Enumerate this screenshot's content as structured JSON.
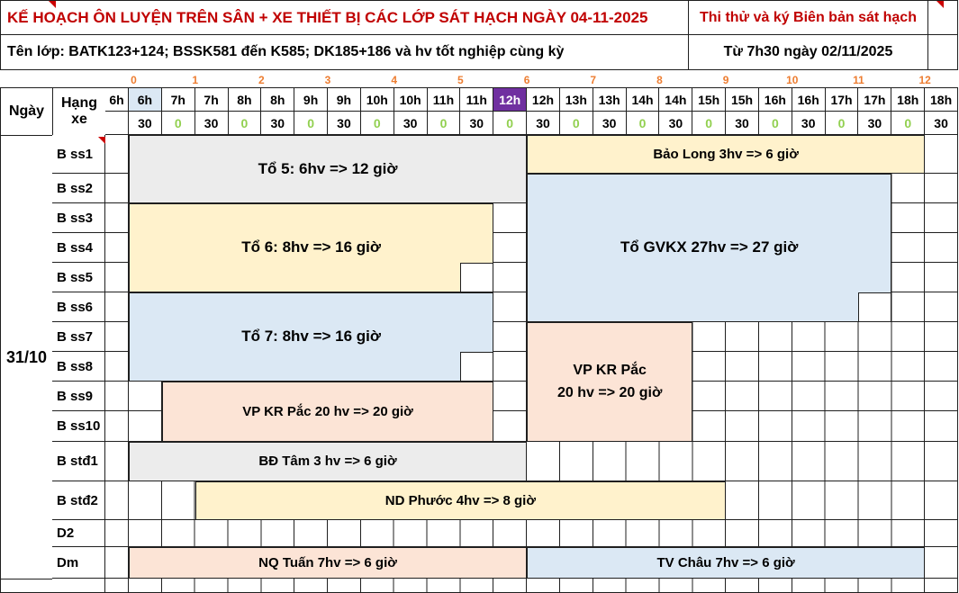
{
  "header": {
    "title": "KẾ HOẠCH ÔN LUYỆN TRÊN SÂN + XE THIẾT BỊ CÁC LỚP SÁT HẠCH NGÀY 04-11-2025",
    "class_list": "Tên lớp: BATK123+124; BSSK581 đến K585; DK185+186 và hv tốt nghiệp cùng kỳ",
    "exam_note": "Thi thử và ký Biên bản sát hạch",
    "exam_start": "Từ 7h30 ngày 02/11/2025"
  },
  "colors": {
    "title_red": "#c00000",
    "counter_orange": "#ed7d31",
    "minute_green": "#92d050",
    "purple_cell": "#7030a0",
    "header_highlight_blue": "#dbe8f4",
    "block_gray": "#ececec",
    "block_yellow": "#fff2cc",
    "block_blue": "#dbe8f4",
    "block_pink": "#fce4d6",
    "gridline": "#1f1f1f"
  },
  "table": {
    "date_col_header": "Ngày",
    "class_col_header": "Hạng\nxe",
    "date": "31/10",
    "hour_counters": [
      "0",
      "1",
      "2",
      "3",
      "4",
      "5",
      "6",
      "7",
      "8",
      "9",
      "10",
      "11",
      "12"
    ],
    "time_columns": [
      {
        "hour": "6h",
        "min": ""
      },
      {
        "hour": "6h",
        "min": "30",
        "hl": "blue"
      },
      {
        "hour": "7h",
        "min": "0"
      },
      {
        "hour": "7h",
        "min": "30"
      },
      {
        "hour": "8h",
        "min": "0"
      },
      {
        "hour": "8h",
        "min": "30"
      },
      {
        "hour": "9h",
        "min": "0"
      },
      {
        "hour": "9h",
        "min": "30"
      },
      {
        "hour": "10h",
        "min": "0"
      },
      {
        "hour": "10h",
        "min": "30"
      },
      {
        "hour": "11h",
        "min": "0"
      },
      {
        "hour": "11h",
        "min": "30"
      },
      {
        "hour": "12h",
        "min": "0",
        "hl": "purple"
      },
      {
        "hour": "12h",
        "min": "30"
      },
      {
        "hour": "13h",
        "min": "0"
      },
      {
        "hour": "13h",
        "min": "30"
      },
      {
        "hour": "14h",
        "min": "0"
      },
      {
        "hour": "14h",
        "min": "30"
      },
      {
        "hour": "15h",
        "min": "0"
      },
      {
        "hour": "15h",
        "min": "30"
      },
      {
        "hour": "16h",
        "min": "0"
      },
      {
        "hour": "16h",
        "min": "30"
      },
      {
        "hour": "17h",
        "min": "0"
      },
      {
        "hour": "17h",
        "min": "30"
      },
      {
        "hour": "18h",
        "min": "0"
      },
      {
        "hour": "18h",
        "min": "30"
      }
    ],
    "row_labels": [
      "B ss1",
      "B ss2",
      "B ss3",
      "B ss4",
      "B ss5",
      "B ss6",
      "B ss7",
      "B ss8",
      "B ss9",
      "B ss10",
      "B stđ1",
      "B stđ2",
      "D2",
      "Dm"
    ]
  },
  "blocks": [
    {
      "id": "to5",
      "label": "Tổ 5: 6hv => 12 giờ",
      "color": "#ececec",
      "row_start": 1,
      "row_end": 2,
      "col_start": 2,
      "col_end": 13,
      "notch_cols": 0,
      "font": 17
    },
    {
      "id": "bao-long",
      "label": "Bảo Long 3hv => 6 giờ",
      "color": "#fff2cc",
      "row_start": 1,
      "row_end": 1,
      "col_start": 14,
      "col_end": 25,
      "notch_cols": 0,
      "font": 15
    },
    {
      "id": "to-gvkx",
      "label": "Tổ GVKX 27hv => 27 giờ",
      "color": "#dbe8f4",
      "row_start": 2,
      "row_end": 6,
      "col_start": 14,
      "col_end": 24,
      "notch_cols": 1,
      "font": 17
    },
    {
      "id": "to6",
      "label": "Tổ 6: 8hv => 16 giờ",
      "color": "#fff2cc",
      "row_start": 3,
      "row_end": 5,
      "col_start": 2,
      "col_end": 12,
      "notch_cols": 1,
      "font": 17
    },
    {
      "id": "to7",
      "label": "Tổ 7: 8hv => 16 giờ",
      "color": "#dbe8f4",
      "row_start": 6,
      "row_end": 8,
      "col_start": 2,
      "col_end": 12,
      "notch_cols": 1,
      "font": 17
    },
    {
      "id": "vp-kr-pac-1",
      "label": "VP KR Pắc 20 hv => 20 giờ",
      "color": "#fce4d6",
      "row_start": 9,
      "row_end": 10,
      "col_start": 3,
      "col_end": 12,
      "notch_cols": 0,
      "font": 15
    },
    {
      "id": "vp-kr-pac-2",
      "label": "VP KR Pắc\n20 hv => 20 giờ",
      "color": "#fce4d6",
      "row_start": 7,
      "row_end": 10,
      "col_start": 14,
      "col_end": 18,
      "notch_cols": 0,
      "font": 16
    },
    {
      "id": "bd-tam",
      "label": "BĐ Tâm 3 hv => 6 giờ",
      "color": "#ececec",
      "row_start": 11,
      "row_end": 11,
      "col_start": 2,
      "col_end": 13,
      "notch_cols": 0,
      "font": 15
    },
    {
      "id": "nd-phuoc",
      "label": "ND Phước 4hv => 8 giờ",
      "color": "#fff2cc",
      "row_start": 12,
      "row_end": 12,
      "col_start": 4,
      "col_end": 19,
      "notch_cols": 0,
      "font": 15
    },
    {
      "id": "nq-tuan",
      "label": "NQ Tuấn 7hv => 6 giờ",
      "color": "#fce4d6",
      "row_start": 14,
      "row_end": 14,
      "col_start": 2,
      "col_end": 13,
      "notch_cols": 0,
      "font": 15
    },
    {
      "id": "tv-chau",
      "label": "TV Châu 7hv => 6 giờ",
      "color": "#dbe8f4",
      "row_start": 14,
      "row_end": 14,
      "col_start": 14,
      "col_end": 25,
      "notch_cols": 0,
      "font": 15
    }
  ]
}
